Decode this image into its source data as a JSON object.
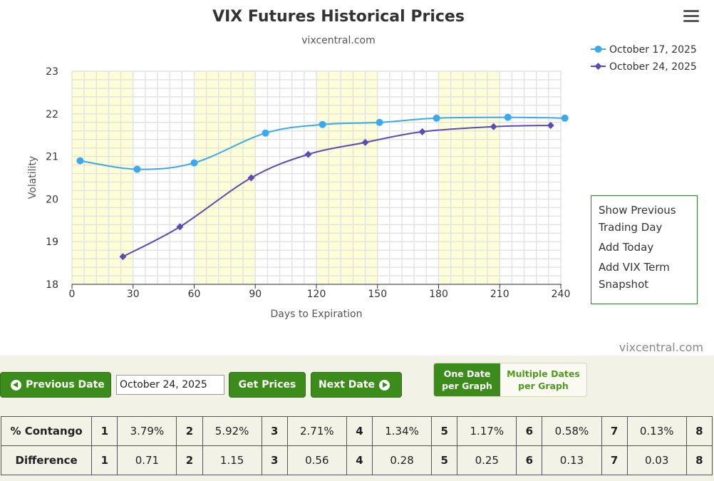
{
  "chart_data": {
    "type": "line",
    "title": "VIX Futures Historical Prices",
    "subtitle": "vixcentral.com",
    "xlabel": "Days to Expiration",
    "ylabel": "Volatility",
    "xlim": [
      0,
      240
    ],
    "ylim": [
      18,
      23
    ],
    "xticks": [
      "0",
      "30",
      "60",
      "90",
      "120",
      "150",
      "180",
      "210",
      "240"
    ],
    "yticks": [
      "18",
      "19",
      "20",
      "21",
      "22",
      "23"
    ],
    "grid": true,
    "legend_position": "top-right",
    "credit": "vixcentral.com",
    "series": [
      {
        "name": "October 17, 2025",
        "color": "#3aaaee",
        "marker": "circle",
        "x": [
          4,
          32,
          60,
          95,
          123,
          151,
          179,
          214,
          242
        ],
        "y": [
          20.9,
          20.7,
          20.85,
          21.55,
          21.75,
          21.8,
          21.9,
          21.92,
          21.9
        ]
      },
      {
        "name": "October 24, 2025",
        "color": "#5b4bb7",
        "marker": "diamond",
        "x": [
          25,
          53,
          88,
          116,
          144,
          172,
          207,
          235
        ],
        "y": [
          18.65,
          19.35,
          20.5,
          21.05,
          21.33,
          21.58,
          21.7,
          21.73
        ]
      }
    ],
    "shaded_bands_x": [
      [
        0,
        30
      ],
      [
        60,
        90
      ],
      [
        120,
        150
      ],
      [
        180,
        210
      ],
      [
        240,
        241
      ]
    ]
  },
  "header": {
    "menu_icon": "hamburger-menu-icon"
  },
  "side_menu": {
    "items": [
      "Show Previous Trading Day",
      "Add Today",
      "Add VIX Term Snapshot"
    ]
  },
  "controls": {
    "previous_label": "Previous Date",
    "date_value": "October 24, 2025",
    "get_prices_label": "Get Prices",
    "next_label": "Next Date",
    "toggle_one": "One Date per Graph",
    "toggle_multiple": "Multiple Dates per Graph",
    "accent_color": "#3c8c1c"
  },
  "table": {
    "rows": [
      {
        "label": "% Contango",
        "cells": [
          [
            "1",
            "3.79%"
          ],
          [
            "2",
            "5.92%"
          ],
          [
            "3",
            "2.71%"
          ],
          [
            "4",
            "1.34%"
          ],
          [
            "5",
            "1.17%"
          ],
          [
            "6",
            "0.58%"
          ],
          [
            "7",
            "0.13%"
          ],
          [
            "8",
            ""
          ]
        ]
      },
      {
        "label": "Difference",
        "cells": [
          [
            "1",
            "0.71"
          ],
          [
            "2",
            "1.15"
          ],
          [
            "3",
            "0.56"
          ],
          [
            "4",
            "0.28"
          ],
          [
            "5",
            "0.25"
          ],
          [
            "6",
            "0.13"
          ],
          [
            "7",
            "0.03"
          ],
          [
            "8",
            ""
          ]
        ]
      }
    ]
  }
}
